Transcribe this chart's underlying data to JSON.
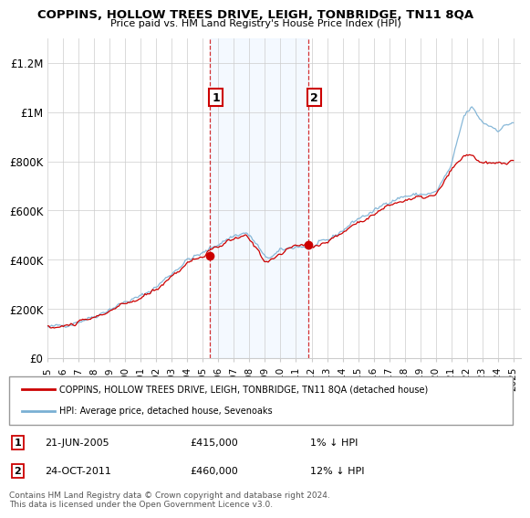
{
  "title": "COPPINS, HOLLOW TREES DRIVE, LEIGH, TONBRIDGE, TN11 8QA",
  "subtitle": "Price paid vs. HM Land Registry's House Price Index (HPI)",
  "ylabel_ticks": [
    "£0",
    "£200K",
    "£400K",
    "£600K",
    "£800K",
    "£1M",
    "£1.2M"
  ],
  "ytick_values": [
    0,
    200000,
    400000,
    600000,
    800000,
    1000000,
    1200000
  ],
  "ylim": [
    0,
    1300000
  ],
  "xlim_start": 1995.0,
  "xlim_end": 2025.5,
  "sale1_x": 2005.47,
  "sale1_y": 415000,
  "sale1_label": "1",
  "sale2_x": 2011.81,
  "sale2_y": 460000,
  "sale2_label": "2",
  "hpi_color": "#7ab0d4",
  "price_color": "#cc0000",
  "shade_color": "#ddeeff",
  "annotation_box_color": "#cc0000",
  "legend_label_red": "COPPINS, HOLLOW TREES DRIVE, LEIGH, TONBRIDGE, TN11 8QA (detached house)",
  "legend_label_blue": "HPI: Average price, detached house, Sevenoaks",
  "footnote": "Contains HM Land Registry data © Crown copyright and database right 2024.\nThis data is licensed under the Open Government Licence v3.0.",
  "table_rows": [
    [
      "1",
      "21-JUN-2005",
      "£415,000",
      "1% ↓ HPI"
    ],
    [
      "2",
      "24-OCT-2011",
      "£460,000",
      "12% ↓ HPI"
    ]
  ],
  "xtick_years": [
    1995,
    1996,
    1997,
    1998,
    1999,
    2000,
    2001,
    2002,
    2003,
    2004,
    2005,
    2006,
    2007,
    2008,
    2009,
    2010,
    2011,
    2012,
    2013,
    2014,
    2015,
    2016,
    2017,
    2018,
    2019,
    2020,
    2021,
    2022,
    2023,
    2024,
    2025
  ]
}
